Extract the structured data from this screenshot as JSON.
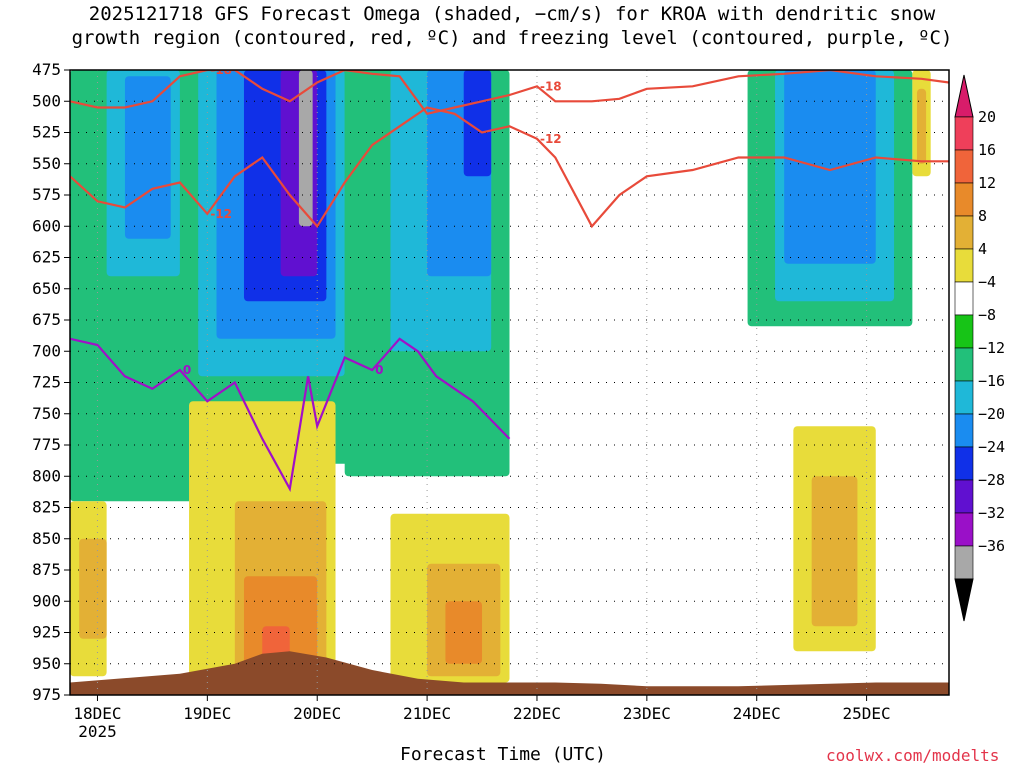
{
  "title_line1": "2025121718 GFS Forecast Omega (shaded, −cm/s) for KROA with dendritic snow",
  "title_line2": "growth region (contoured, red, ºC) and freezing level (contoured, purple, ºC)",
  "xlabel": "Forecast Time (UTC)",
  "credit": "coolwx.com/modelts",
  "chart_data": {
    "type": "heatmap",
    "title": "2025121718 GFS Forecast Omega (shaded, −cm/s) for KROA with dendritic snow growth region (contoured, red, ºC) and freezing level (contoured, purple, ºC)",
    "xlabel": "Forecast Time (UTC)",
    "ylabel": "Pressure (hPa)",
    "y_ticks": [
      475,
      500,
      525,
      550,
      575,
      600,
      625,
      650,
      675,
      700,
      725,
      750,
      775,
      800,
      825,
      850,
      875,
      900,
      925,
      950,
      975
    ],
    "ylim": [
      975,
      475
    ],
    "x_ticks": [
      "18DEC",
      "19DEC",
      "20DEC",
      "21DEC",
      "22DEC",
      "23DEC",
      "24DEC",
      "25DEC"
    ],
    "x_year": "2025",
    "xlim_hours": [
      -6,
      186
    ],
    "colorbar": {
      "ticks": [
        "20",
        "16",
        "12",
        "8",
        "4",
        "−4",
        "−8",
        "−12",
        "−16",
        "−20",
        "−24",
        "−28",
        "−32",
        "−36"
      ],
      "colors": [
        "#ef3f5a",
        "#f0643a",
        "#e88a2a",
        "#e3b035",
        "#e8dc3a",
        "#ffffff",
        "#17c417",
        "#22c07a",
        "#1fb8d8",
        "#1a8cf0",
        "#1030e8",
        "#6010d0",
        "#9a10c8",
        "#a8a8a8"
      ],
      "top_color": "#d81c6a",
      "bottom_color": "#000000"
    },
    "omega_regions": [
      {
        "level": "-8",
        "hours": [
          -6,
          42
        ],
        "p": [
          475,
          820
        ]
      },
      {
        "level": "-12",
        "hours": [
          2,
          18
        ],
        "p": [
          475,
          640
        ]
      },
      {
        "level": "-16",
        "hours": [
          6,
          16
        ],
        "p": [
          480,
          610
        ]
      },
      {
        "level": "-8",
        "hours": [
          20,
          58
        ],
        "p": [
          475,
          790
        ]
      },
      {
        "level": "-12",
        "hours": [
          22,
          54
        ],
        "p": [
          475,
          720
        ]
      },
      {
        "level": "-16",
        "hours": [
          26,
          52
        ],
        "p": [
          475,
          690
        ]
      },
      {
        "level": "-20",
        "hours": [
          32,
          50
        ],
        "p": [
          475,
          660
        ]
      },
      {
        "level": "-24",
        "hours": [
          40,
          48
        ],
        "p": [
          475,
          640
        ]
      },
      {
        "level": "-32",
        "hours": [
          44,
          47
        ],
        "p": [
          475,
          600
        ]
      },
      {
        "level": "-36",
        "hours": [
          45,
          46
        ],
        "p": [
          475,
          590
        ]
      },
      {
        "level": "-8",
        "hours": [
          54,
          90
        ],
        "p": [
          475,
          800
        ]
      },
      {
        "level": "-12",
        "hours": [
          64,
          86
        ],
        "p": [
          475,
          700
        ]
      },
      {
        "level": "-16",
        "hours": [
          72,
          86
        ],
        "p": [
          475,
          640
        ]
      },
      {
        "level": "-20",
        "hours": [
          80,
          86
        ],
        "p": [
          475,
          560
        ]
      },
      {
        "level": "-8",
        "hours": [
          142,
          178
        ],
        "p": [
          475,
          680
        ]
      },
      {
        "level": "-12",
        "hours": [
          148,
          174
        ],
        "p": [
          475,
          660
        ]
      },
      {
        "level": "-16",
        "hours": [
          150,
          170
        ],
        "p": [
          475,
          630
        ]
      },
      {
        "level": "4",
        "hours": [
          -6,
          2
        ],
        "p": [
          820,
          960
        ]
      },
      {
        "level": "8",
        "hours": [
          -4,
          2
        ],
        "p": [
          850,
          930
        ]
      },
      {
        "level": "4",
        "hours": [
          20,
          52
        ],
        "p": [
          740,
          965
        ]
      },
      {
        "level": "8",
        "hours": [
          30,
          50
        ],
        "p": [
          820,
          960
        ]
      },
      {
        "level": "12",
        "hours": [
          32,
          48
        ],
        "p": [
          880,
          960
        ]
      },
      {
        "level": "16",
        "hours": [
          36,
          42
        ],
        "p": [
          920,
          955
        ]
      },
      {
        "level": "4",
        "hours": [
          64,
          90
        ],
        "p": [
          830,
          965
        ]
      },
      {
        "level": "8",
        "hours": [
          72,
          88
        ],
        "p": [
          870,
          960
        ]
      },
      {
        "level": "12",
        "hours": [
          76,
          84
        ],
        "p": [
          900,
          950
        ]
      },
      {
        "level": "4",
        "hours": [
          152,
          170
        ],
        "p": [
          760,
          940
        ]
      },
      {
        "level": "8",
        "hours": [
          156,
          166
        ],
        "p": [
          800,
          920
        ]
      },
      {
        "level": "4",
        "hours": [
          178,
          182
        ],
        "p": [
          475,
          560
        ]
      },
      {
        "level": "8",
        "hours": [
          179,
          181
        ],
        "p": [
          490,
          550
        ]
      }
    ],
    "surface_pressure": [
      975,
      968,
      960,
      952,
      950,
      955,
      965,
      972,
      975,
      975,
      975,
      976,
      978,
      978,
      978,
      977,
      976,
      975,
      975
    ],
    "surface_hours": [
      -6,
      18,
      30,
      36,
      42,
      50,
      60,
      70,
      80,
      90,
      100,
      110,
      120,
      130,
      140,
      150,
      160,
      170,
      186
    ],
    "contours": [
      {
        "name": "-12 C isotherm",
        "color": "#e84a3a",
        "label": "-12",
        "hours": [
          -6,
          0,
          6,
          12,
          18,
          24,
          30,
          36,
          42,
          48,
          54,
          60,
          66,
          72,
          78,
          84,
          90,
          96,
          100,
          108,
          114,
          120,
          130,
          140,
          150,
          160,
          170,
          180,
          186
        ],
        "p": [
          560,
          580,
          585,
          570,
          565,
          590,
          560,
          545,
          575,
          600,
          565,
          535,
          520,
          505,
          510,
          525,
          520,
          530,
          545,
          600,
          575,
          560,
          555,
          545,
          545,
          555,
          545,
          548,
          548
        ]
      },
      {
        "name": "-18 C isotherm",
        "color": "#e84a3a",
        "label": "-18",
        "hours": [
          -6,
          0,
          6,
          12,
          18,
          24,
          30,
          36,
          42,
          48,
          54,
          60,
          66,
          72,
          78,
          84,
          90,
          96,
          100,
          108,
          114,
          120,
          130,
          140,
          150,
          160,
          170,
          180,
          186
        ],
        "p": [
          500,
          505,
          505,
          500,
          480,
          475,
          475,
          490,
          500,
          485,
          475,
          478,
          480,
          510,
          505,
          500,
          495,
          488,
          500,
          500,
          498,
          490,
          488,
          480,
          478,
          475,
          480,
          482,
          485
        ]
      },
      {
        "name": "0 C freezing level",
        "color": "#a010c8",
        "label": "0",
        "hours": [
          -6,
          0,
          6,
          12,
          18,
          24,
          30,
          36,
          42,
          46,
          48,
          54,
          60,
          66,
          70,
          74,
          78,
          82,
          86,
          90
        ],
        "p": [
          690,
          695,
          720,
          730,
          715,
          740,
          725,
          770,
          810,
          720,
          760,
          705,
          715,
          690,
          700,
          720,
          730,
          740,
          755,
          770
        ]
      }
    ]
  }
}
